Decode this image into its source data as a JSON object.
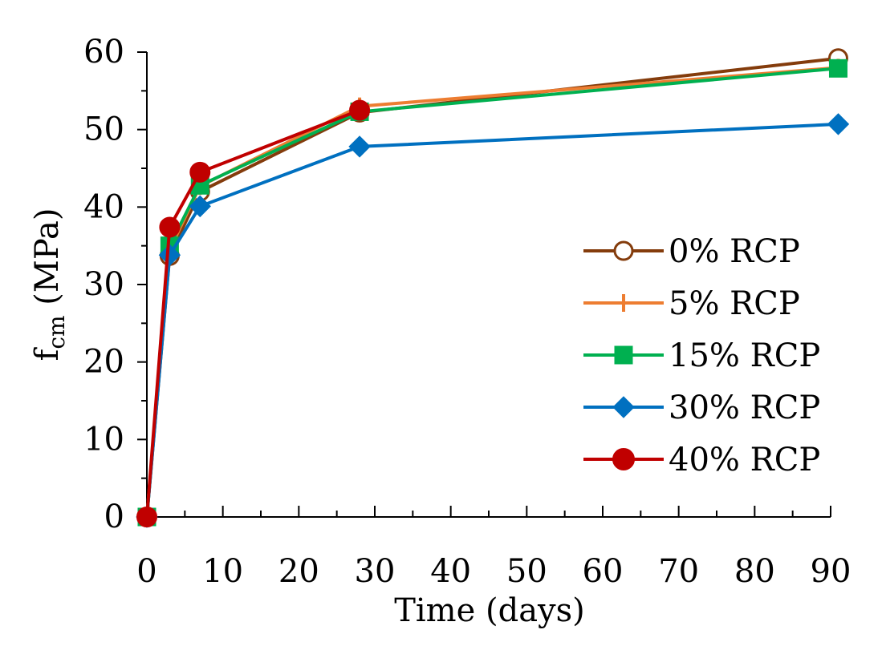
{
  "chart_data": {
    "type": "line",
    "title": "",
    "xlabel": "Time (days)",
    "ylabel_main": "f",
    "ylabel_sub": "cm",
    "ylabel_unit": " (MPa)",
    "xlim": [
      0,
      90
    ],
    "ylim": [
      0,
      60
    ],
    "x_ticks": [
      0,
      10,
      20,
      30,
      40,
      50,
      60,
      70,
      80,
      90
    ],
    "y_ticks": [
      0,
      10,
      20,
      30,
      40,
      50,
      60
    ],
    "x_tick_labels": [
      "0",
      "10",
      "20",
      "30",
      "40",
      "50",
      "60",
      "70",
      "80",
      "90"
    ],
    "y_tick_labels": [
      "0",
      "10",
      "20",
      "30",
      "40",
      "50",
      "60"
    ],
    "grid": false,
    "legend_position": "right",
    "x": [
      0,
      3,
      7,
      28,
      91
    ],
    "series": [
      {
        "name": "0% RCP",
        "color": "#843C0C",
        "marker": "open-circle",
        "values": [
          0,
          33.7,
          42.0,
          52.2,
          59.2
        ]
      },
      {
        "name": "5% RCP",
        "color": "#ED7D31",
        "marker": "plus",
        "values": [
          0,
          34.5,
          42.7,
          53.0,
          58.0
        ]
      },
      {
        "name": "15% RCP",
        "color": "#00B050",
        "marker": "square",
        "values": [
          0,
          35.0,
          42.8,
          52.3,
          57.9
        ]
      },
      {
        "name": "30% RCP",
        "color": "#0070C0",
        "marker": "diamond",
        "values": [
          0,
          33.8,
          40.1,
          47.8,
          50.7
        ]
      },
      {
        "name": "40% RCP",
        "color": "#C00000",
        "marker": "filled-circle",
        "values": [
          0,
          37.4,
          44.5,
          52.5,
          null
        ]
      }
    ]
  }
}
